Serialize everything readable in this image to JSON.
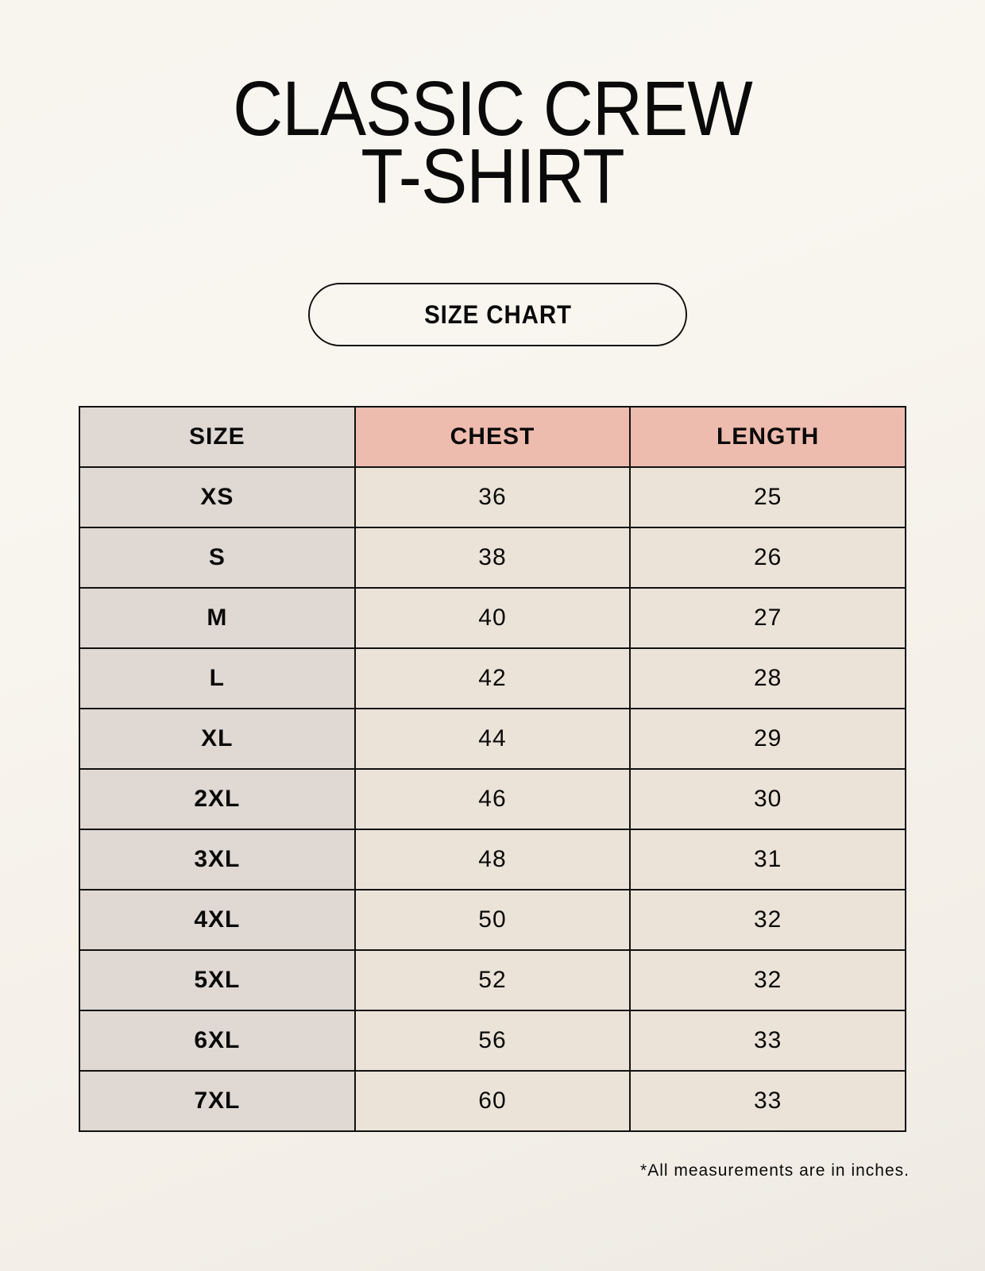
{
  "title": {
    "line1": "CLASSIC CREW",
    "line2": "T-SHIRT"
  },
  "badge": "SIZE CHART",
  "table": {
    "headers": [
      "SIZE",
      "CHEST",
      "LENGTH"
    ],
    "rows": [
      [
        "XS",
        "36",
        "25"
      ],
      [
        "S",
        "38",
        "26"
      ],
      [
        "M",
        "40",
        "27"
      ],
      [
        "L",
        "42",
        "28"
      ],
      [
        "XL",
        "44",
        "29"
      ],
      [
        "2XL",
        "46",
        "30"
      ],
      [
        "3XL",
        "48",
        "31"
      ],
      [
        "4XL",
        "50",
        "32"
      ],
      [
        "5XL",
        "52",
        "32"
      ],
      [
        "6XL",
        "56",
        "33"
      ],
      [
        "7XL",
        "60",
        "33"
      ]
    ]
  },
  "footnote": "*All measurements are in inches.",
  "colors": {
    "header_size": "#e0d8d2",
    "header_accent": "#eebcae",
    "value_cell": "#ebe3d8"
  }
}
